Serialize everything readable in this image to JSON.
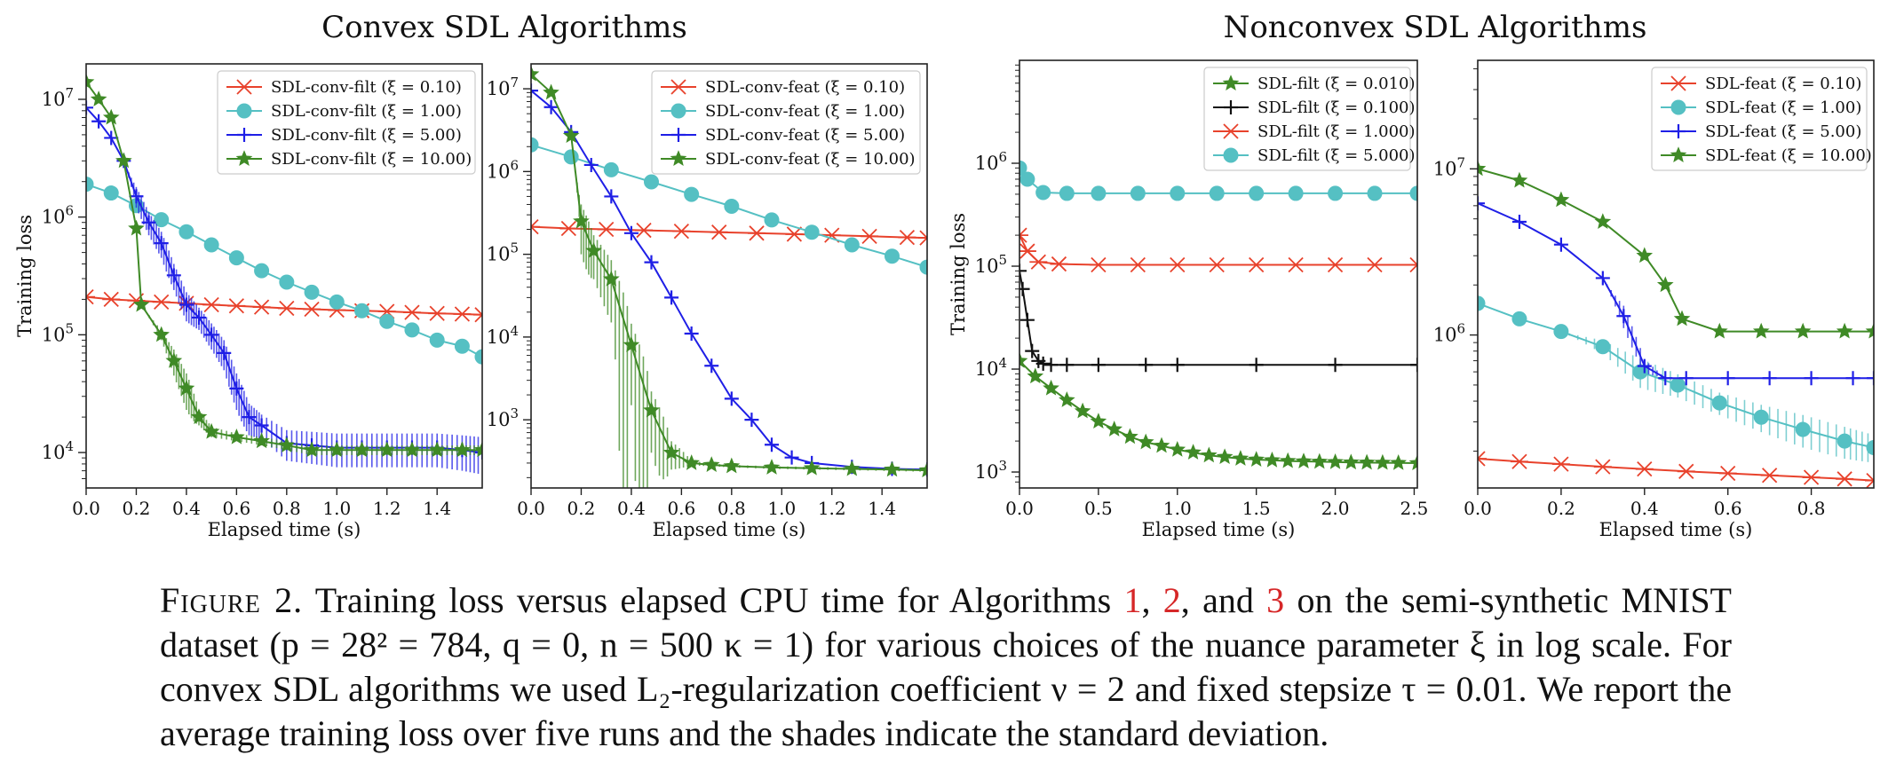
{
  "group_titles": {
    "convex": "Convex SDL Algorithms",
    "nonconvex": "Nonconvex SDL Algorithms"
  },
  "colors": {
    "red": "#e8422c",
    "cyan": "#55c0c3",
    "blue": "#1f1fe6",
    "green": "#3f8a26",
    "black": "#111111"
  },
  "chart_data": [
    {
      "type": "line",
      "ylog": true,
      "xlabel": "Elapsed time (s)",
      "ylabel": "Training loss",
      "xlim": [
        0,
        1.58
      ],
      "ylim": [
        5000,
        20000000
      ],
      "xticks": [
        0.0,
        0.2,
        0.4,
        0.6,
        0.8,
        1.0,
        1.2,
        1.4
      ],
      "xtick_labels": [
        "0.0",
        "0.2",
        "0.4",
        "0.6",
        "0.8",
        "1.0",
        "1.2",
        "1.4"
      ],
      "yticks": [
        10000,
        100000,
        1000000,
        10000000
      ],
      "ytick_labels": [
        "10^4",
        "10^5",
        "10^6",
        "10^7"
      ],
      "legend_loc": "top-right",
      "series": [
        {
          "name": "SDL-conv-filt (ξ = 0.10)",
          "color": "red",
          "marker": "x",
          "x": [
            0,
            0.1,
            0.2,
            0.3,
            0.4,
            0.5,
            0.6,
            0.7,
            0.8,
            0.9,
            1.0,
            1.1,
            1.2,
            1.3,
            1.4,
            1.5,
            1.58
          ],
          "y": [
            210000,
            200000,
            195000,
            190000,
            185000,
            180000,
            176000,
            172000,
            168000,
            165000,
            162000,
            160000,
            158000,
            155000,
            152000,
            150000,
            148000
          ]
        },
        {
          "name": "SDL-conv-filt (ξ = 1.00)",
          "color": "cyan",
          "marker": "o",
          "x": [
            0,
            0.1,
            0.2,
            0.3,
            0.4,
            0.5,
            0.6,
            0.7,
            0.8,
            0.9,
            1.0,
            1.1,
            1.2,
            1.3,
            1.4,
            1.5,
            1.58
          ],
          "y": [
            1900000,
            1600000,
            1250000,
            950000,
            750000,
            580000,
            450000,
            350000,
            280000,
            230000,
            190000,
            160000,
            130000,
            110000,
            90000,
            80000,
            65000
          ]
        },
        {
          "name": "SDL-conv-filt (ξ = 5.00)",
          "color": "blue",
          "marker": "+",
          "x": [
            0,
            0.05,
            0.1,
            0.15,
            0.2,
            0.25,
            0.3,
            0.35,
            0.4,
            0.45,
            0.5,
            0.55,
            0.6,
            0.65,
            0.7,
            0.8,
            0.9,
            1.0,
            1.1,
            1.2,
            1.3,
            1.4,
            1.5,
            1.58
          ],
          "y": [
            8500000,
            6500000,
            4700000,
            3000000,
            1500000,
            900000,
            600000,
            320000,
            180000,
            140000,
            100000,
            70000,
            35000,
            20000,
            17000,
            12000,
            11500,
            11000,
            11000,
            11000,
            11000,
            11000,
            10500,
            10000
          ],
          "err": [
            0,
            0,
            0,
            0,
            300000,
            200000,
            150000,
            80000,
            50000,
            30000,
            25000,
            20000,
            12000,
            6000,
            4000,
            3500,
            3500,
            3500,
            3500,
            3500,
            3500,
            3500,
            3500,
            3500
          ]
        },
        {
          "name": "SDL-conv-filt (ξ = 10.00)",
          "color": "green",
          "marker": "*",
          "x": [
            0,
            0.05,
            0.1,
            0.15,
            0.2,
            0.22,
            0.3,
            0.35,
            0.4,
            0.45,
            0.5,
            0.6,
            0.7,
            0.8,
            0.9,
            1.0,
            1.1,
            1.2,
            1.3,
            1.4,
            1.5,
            1.58
          ],
          "y": [
            14000000,
            10000000,
            7000000,
            3000000,
            800000,
            180000,
            100000,
            60000,
            35000,
            20000,
            15000,
            13500,
            12500,
            11500,
            10500,
            10500,
            10500,
            10500,
            10500,
            10500,
            10500,
            10500
          ],
          "err": [
            0,
            0,
            0,
            0,
            0,
            0,
            10000,
            15000,
            12000,
            3000,
            1500,
            1000,
            1000,
            1000,
            1000,
            1000,
            1000,
            1000,
            1000,
            1000,
            1000,
            1000
          ]
        }
      ]
    },
    {
      "type": "line",
      "ylog": true,
      "xlabel": "Elapsed time (s)",
      "ylabel": "",
      "xlim": [
        0,
        1.58
      ],
      "ylim": [
        150,
        20000000
      ],
      "xticks": [
        0.0,
        0.2,
        0.4,
        0.6,
        0.8,
        1.0,
        1.2,
        1.4
      ],
      "xtick_labels": [
        "0.0",
        "0.2",
        "0.4",
        "0.6",
        "0.8",
        "1.0",
        "1.2",
        "1.4"
      ],
      "yticks": [
        1000,
        10000,
        100000,
        1000000,
        10000000
      ],
      "ytick_labels": [
        "10^3",
        "10^4",
        "10^5",
        "10^6",
        "10^7"
      ],
      "legend_loc": "top-right",
      "series": [
        {
          "name": "SDL-conv-feat (ξ = 0.10)",
          "color": "red",
          "marker": "x",
          "x": [
            0,
            0.15,
            0.3,
            0.45,
            0.6,
            0.75,
            0.9,
            1.05,
            1.2,
            1.35,
            1.5,
            1.58
          ],
          "y": [
            215000,
            205000,
            200000,
            195000,
            190000,
            185000,
            180000,
            175000,
            170000,
            165000,
            160000,
            158000
          ]
        },
        {
          "name": "SDL-conv-feat (ξ = 1.00)",
          "color": "cyan",
          "marker": "o",
          "x": [
            0,
            0.16,
            0.32,
            0.48,
            0.64,
            0.8,
            0.96,
            1.12,
            1.28,
            1.44,
            1.58
          ],
          "y": [
            2100000,
            1500000,
            1050000,
            750000,
            530000,
            380000,
            260000,
            185000,
            130000,
            95000,
            70000
          ]
        },
        {
          "name": "SDL-conv-feat (ξ = 5.00)",
          "color": "blue",
          "marker": "+",
          "x": [
            0,
            0.08,
            0.16,
            0.24,
            0.32,
            0.4,
            0.48,
            0.56,
            0.64,
            0.72,
            0.8,
            0.88,
            0.96,
            1.04,
            1.12,
            1.28,
            1.44,
            1.58
          ],
          "y": [
            9500000,
            6000000,
            3000000,
            1200000,
            500000,
            180000,
            80000,
            30000,
            11000,
            4500,
            1800,
            1000,
            500,
            350,
            300,
            270,
            255,
            250
          ]
        },
        {
          "name": "SDL-conv-feat (ξ = 10.00)",
          "color": "green",
          "marker": "*",
          "x": [
            0,
            0.08,
            0.16,
            0.2,
            0.25,
            0.32,
            0.4,
            0.48,
            0.56,
            0.64,
            0.72,
            0.8,
            0.96,
            1.12,
            1.28,
            1.44,
            1.58
          ],
          "y": [
            15000000,
            9000000,
            2700000,
            250000,
            110000,
            50000,
            8000,
            1300,
            400,
            300,
            285,
            275,
            265,
            260,
            255,
            250,
            245
          ],
          "err": [
            0,
            0,
            0,
            150000,
            60000,
            35000,
            6500,
            900,
            150,
            20,
            10,
            10,
            10,
            10,
            10,
            10,
            10
          ]
        }
      ]
    },
    {
      "type": "line",
      "ylog": true,
      "xlabel": "Elapsed time (s)",
      "ylabel": "Training loss",
      "xlim": [
        0,
        2.52
      ],
      "ylim": [
        700,
        10000000
      ],
      "xticks": [
        0.0,
        0.5,
        1.0,
        1.5,
        2.0,
        2.5
      ],
      "xtick_labels": [
        "0.0",
        "0.5",
        "1.0",
        "1.5",
        "2.0",
        "2.5"
      ],
      "yticks": [
        1000,
        10000,
        100000,
        1000000
      ],
      "ytick_labels": [
        "10^3",
        "10^4",
        "10^5",
        "10^6"
      ],
      "legend_loc": "top-right",
      "series": [
        {
          "name": "SDL-filt (ξ = 0.010)",
          "color": "green",
          "marker": "*",
          "x": [
            0,
            0.1,
            0.2,
            0.3,
            0.4,
            0.5,
            0.6,
            0.7,
            0.8,
            0.9,
            1.0,
            1.1,
            1.2,
            1.3,
            1.4,
            1.5,
            1.6,
            1.7,
            1.8,
            1.9,
            2.0,
            2.1,
            2.2,
            2.3,
            2.4,
            2.52
          ],
          "y": [
            12000,
            8500,
            6500,
            5000,
            3900,
            3100,
            2600,
            2200,
            1950,
            1800,
            1650,
            1550,
            1450,
            1400,
            1350,
            1320,
            1300,
            1280,
            1270,
            1260,
            1250,
            1240,
            1235,
            1230,
            1225,
            1220
          ]
        },
        {
          "name": "SDL-filt (ξ = 0.100)",
          "color": "black",
          "marker": "+",
          "x": [
            0,
            0.02,
            0.05,
            0.08,
            0.12,
            0.15,
            0.2,
            0.3,
            0.5,
            0.8,
            1.0,
            1.5,
            2.0,
            2.52
          ],
          "y": [
            90000,
            60000,
            30000,
            15000,
            12000,
            11300,
            11000,
            11000,
            11000,
            11000,
            11000,
            11000,
            11000,
            11000
          ]
        },
        {
          "name": "SDL-filt (ξ = 1.000)",
          "color": "red",
          "marker": "x",
          "x": [
            0,
            0.05,
            0.12,
            0.25,
            0.5,
            0.75,
            1.0,
            1.25,
            1.5,
            1.75,
            2.0,
            2.25,
            2.52
          ],
          "y": [
            200000,
            140000,
            110000,
            105000,
            103000,
            103000,
            103000,
            103000,
            103000,
            103000,
            103000,
            103000,
            103000
          ]
        },
        {
          "name": "SDL-filt (ξ = 5.000)",
          "color": "cyan",
          "marker": "o",
          "x": [
            0,
            0.05,
            0.15,
            0.3,
            0.5,
            0.75,
            1.0,
            1.25,
            1.5,
            1.75,
            2.0,
            2.25,
            2.52
          ],
          "y": [
            900000,
            700000,
            520000,
            510000,
            510000,
            510000,
            510000,
            510000,
            510000,
            510000,
            510000,
            510000,
            510000
          ]
        }
      ]
    },
    {
      "type": "line",
      "ylog": true,
      "xlabel": "Elapsed time (s)",
      "ylabel": "",
      "xlim": [
        0,
        0.95
      ],
      "ylim": [
        120000,
        45000000
      ],
      "xticks": [
        0.0,
        0.2,
        0.4,
        0.6,
        0.8
      ],
      "xtick_labels": [
        "0.0",
        "0.2",
        "0.4",
        "0.6",
        "0.8"
      ],
      "yticks": [
        1000000,
        10000000
      ],
      "ytick_labels": [
        "10^6",
        "10^7"
      ],
      "legend_loc": "top-right",
      "series": [
        {
          "name": "SDL-feat (ξ = 0.10)",
          "color": "red",
          "marker": "x",
          "x": [
            0,
            0.1,
            0.2,
            0.3,
            0.4,
            0.5,
            0.6,
            0.7,
            0.8,
            0.88,
            0.95
          ],
          "y": [
            180000,
            173000,
            167000,
            161000,
            156000,
            151000,
            147000,
            143000,
            139000,
            136000,
            133000
          ]
        },
        {
          "name": "SDL-feat (ξ = 1.00)",
          "color": "cyan",
          "marker": "o",
          "x": [
            0,
            0.1,
            0.2,
            0.3,
            0.39,
            0.48,
            0.58,
            0.68,
            0.78,
            0.88,
            0.95
          ],
          "y": [
            1550000,
            1250000,
            1050000,
            850000,
            600000,
            500000,
            390000,
            320000,
            270000,
            230000,
            210000
          ],
          "err": [
            0,
            0,
            0,
            80000,
            120000,
            80000,
            60000,
            60000,
            60000,
            50000,
            40000
          ]
        },
        {
          "name": "SDL-feat (ξ = 5.00)",
          "color": "blue",
          "marker": "+",
          "x": [
            0,
            0.1,
            0.2,
            0.3,
            0.35,
            0.4,
            0.45,
            0.5,
            0.6,
            0.7,
            0.8,
            0.9,
            0.95
          ],
          "y": [
            6200000,
            4800000,
            3500000,
            2200000,
            1300000,
            650000,
            550000,
            550000,
            550000,
            550000,
            550000,
            550000,
            550000
          ],
          "err": [
            0,
            0,
            0,
            0,
            200000,
            60000,
            0,
            0,
            0,
            0,
            0,
            0,
            0
          ]
        },
        {
          "name": "SDL-feat (ξ = 10.00)",
          "color": "green",
          "marker": "*",
          "x": [
            0,
            0.1,
            0.2,
            0.3,
            0.4,
            0.45,
            0.49,
            0.58,
            0.68,
            0.78,
            0.88,
            0.95
          ],
          "y": [
            10000000,
            8500000,
            6500000,
            4800000,
            3000000,
            2000000,
            1250000,
            1050000,
            1050000,
            1050000,
            1050000,
            1050000
          ]
        }
      ]
    }
  ],
  "caption": {
    "label": "Figure 2.",
    "part1": " Training loss versus elapsed CPU time for Algorithms ",
    "ref1": "1",
    "sep1": ", ",
    "ref2": "2",
    "sep2": ", and ",
    "ref3": "3",
    "part2": " on the semi-synthetic MNIST dataset (p = 28² = 784, q = 0, n = 500 κ = 1) for various choices of the nuance parameter ξ in log scale. For convex SDL algorithms we used L₂-regularization coefficient ν = 2 and fixed stepsize τ = 0.01. We report the average training loss over five runs and the shades indicate the standard deviation."
  }
}
